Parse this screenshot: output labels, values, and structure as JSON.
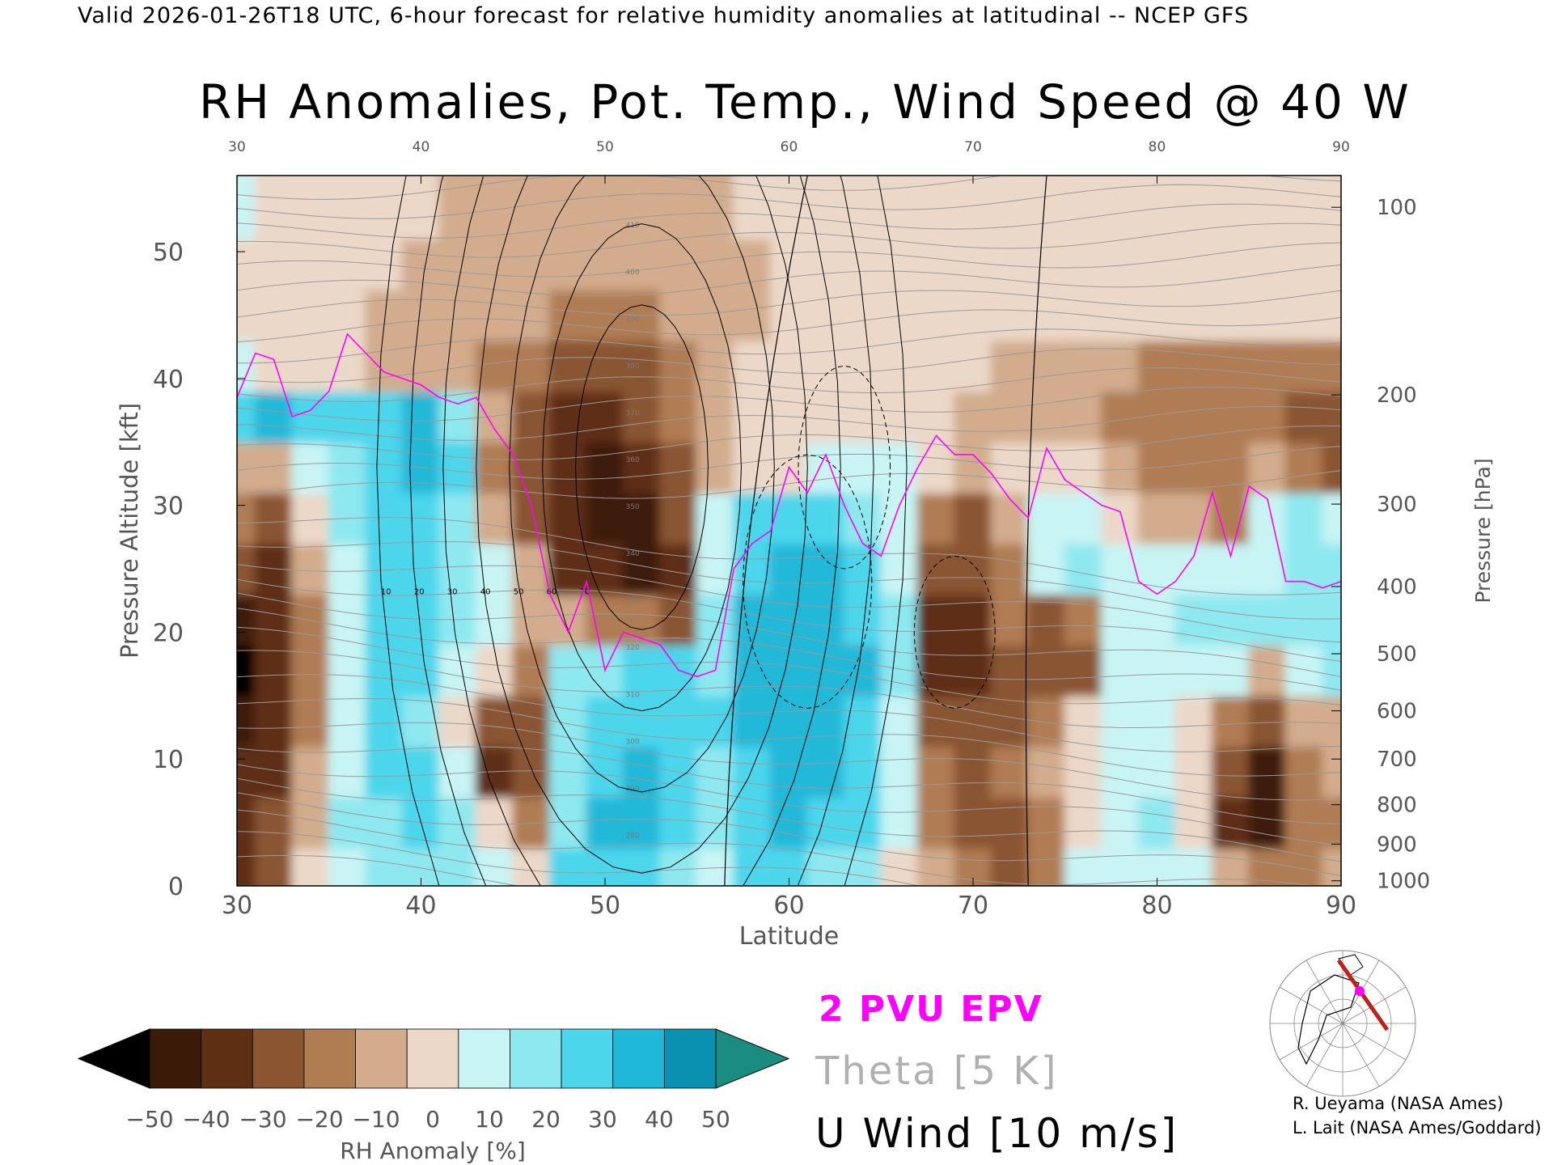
{
  "header": {
    "valid_line": "Valid 2026-01-26T18 UTC, 6-hour forecast for relative humidity anomalies at latitudinal -- NCEP GFS"
  },
  "chart_data": {
    "type": "heatmap",
    "title": "RH Anomalies, Pot. Temp., Wind Speed @ 40 W",
    "xlabel": "Latitude",
    "ylabel_left": "Pressure Altitude [kft]",
    "ylabel_right": "Pressure [hPa]",
    "xlim": [
      30,
      90
    ],
    "ylim": [
      0,
      56
    ],
    "x_ticks": [
      30,
      40,
      50,
      60,
      70,
      80,
      90
    ],
    "y_ticks_kft": [
      0,
      10,
      20,
      30,
      40,
      50
    ],
    "right_axis_ticks": [
      {
        "label": "1000",
        "kft": 0.4
      },
      {
        "label": "900",
        "kft": 3.3
      },
      {
        "label": "800",
        "kft": 6.4
      },
      {
        "label": "700",
        "kft": 10.0
      },
      {
        "label": "600",
        "kft": 13.8
      },
      {
        "label": "500",
        "kft": 18.3
      },
      {
        "label": "400",
        "kft": 23.6
      },
      {
        "label": "300",
        "kft": 30.1
      },
      {
        "label": "200",
        "kft": 38.7
      },
      {
        "label": "100",
        "kft": 53.5
      }
    ],
    "rh_anomaly_field": {
      "description_units": "percent",
      "lat": [
        30,
        32,
        34,
        36,
        38,
        40,
        42,
        44,
        46,
        48,
        50,
        52,
        54,
        56,
        58,
        60,
        62,
        64,
        66,
        68,
        70,
        72,
        74,
        76,
        78,
        80,
        82,
        84,
        86,
        88,
        90
      ],
      "kft": [
        1,
        5,
        9,
        13,
        17,
        21,
        25,
        29,
        33,
        37,
        41,
        45,
        49,
        53
      ],
      "values": [
        [
          -32,
          -22,
          8,
          18,
          22,
          28,
          24,
          12,
          4,
          30,
          38,
          34,
          26,
          18,
          30,
          36,
          28,
          22,
          8,
          -8,
          -18,
          -22,
          -12,
          10,
          14,
          18,
          12,
          -10,
          -20,
          -12,
          -10
        ],
        [
          -38,
          -30,
          -6,
          20,
          28,
          38,
          26,
          4,
          -12,
          24,
          44,
          40,
          30,
          22,
          34,
          40,
          36,
          30,
          10,
          -14,
          -24,
          -26,
          -18,
          8,
          14,
          20,
          8,
          -32,
          -45,
          -16,
          -12
        ],
        [
          -40,
          -32,
          -10,
          18,
          30,
          30,
          10,
          -40,
          -30,
          28,
          36,
          44,
          30,
          26,
          38,
          44,
          42,
          36,
          14,
          -18,
          -22,
          -20,
          -10,
          6,
          10,
          18,
          4,
          -28,
          -48,
          -14,
          -8
        ],
        [
          -44,
          -36,
          -14,
          14,
          34,
          28,
          6,
          -26,
          -22,
          22,
          30,
          38,
          34,
          30,
          40,
          44,
          42,
          38,
          18,
          -26,
          -28,
          -24,
          -14,
          8,
          12,
          16,
          6,
          -20,
          -30,
          -10,
          -6
        ],
        [
          -50,
          -40,
          -18,
          10,
          36,
          36,
          18,
          4,
          -16,
          26,
          20,
          34,
          30,
          28,
          40,
          44,
          44,
          40,
          22,
          -34,
          -40,
          -28,
          -30,
          -30,
          10,
          14,
          12,
          10,
          -6,
          14,
          20
        ],
        [
          -42,
          -38,
          -12,
          14,
          34,
          38,
          26,
          10,
          -4,
          -10,
          -12,
          -16,
          -28,
          20,
          40,
          44,
          42,
          38,
          22,
          -32,
          -36,
          -20,
          -22,
          -12,
          16,
          18,
          20,
          26,
          20,
          24,
          22
        ],
        [
          -30,
          -32,
          -6,
          16,
          32,
          36,
          28,
          10,
          -10,
          -34,
          -40,
          -44,
          -36,
          18,
          38,
          42,
          40,
          34,
          18,
          -26,
          -30,
          -12,
          10,
          20,
          18,
          14,
          10,
          12,
          18,
          26,
          20
        ],
        [
          -18,
          -22,
          2,
          20,
          30,
          38,
          26,
          -4,
          -30,
          -40,
          -44,
          -42,
          -30,
          12,
          32,
          38,
          36,
          24,
          14,
          -16,
          -24,
          -8,
          14,
          18,
          4,
          -6,
          -10,
          -12,
          10,
          24,
          18
        ],
        [
          -10,
          -8,
          14,
          24,
          34,
          40,
          30,
          -18,
          -30,
          -40,
          -44,
          -36,
          -24,
          -4,
          8,
          6,
          10,
          12,
          10,
          6,
          -2,
          2,
          8,
          2,
          -10,
          -14,
          -18,
          -20,
          -10,
          -16,
          -24
        ],
        [
          36,
          40,
          30,
          32,
          38,
          40,
          26,
          -6,
          -22,
          -36,
          -38,
          -30,
          -20,
          -8,
          2,
          4,
          6,
          8,
          6,
          2,
          -2,
          -4,
          -2,
          -8,
          -16,
          -20,
          -16,
          -14,
          -20,
          -24,
          -26
        ],
        [
          14,
          8,
          6,
          2,
          -2,
          -6,
          -10,
          -14,
          -20,
          -26,
          -28,
          -24,
          -14,
          -6,
          0,
          2,
          2,
          4,
          4,
          2,
          0,
          -2,
          -4,
          -6,
          -10,
          -12,
          -12,
          -14,
          -16,
          -18,
          -18
        ],
        [
          6,
          4,
          2,
          0,
          -2,
          -4,
          -6,
          -8,
          -10,
          -12,
          -14,
          -12,
          -8,
          -4,
          -2,
          0,
          2,
          2,
          4,
          4,
          4,
          4,
          6,
          6,
          6,
          6,
          6,
          6,
          6,
          6,
          6
        ],
        [
          8,
          6,
          4,
          2,
          0,
          -2,
          -4,
          -6,
          -8,
          -10,
          -10,
          -8,
          -6,
          -4,
          -2,
          0,
          2,
          2,
          4,
          4,
          6,
          6,
          6,
          6,
          6,
          8,
          8,
          8,
          8,
          8,
          8
        ],
        [
          10,
          8,
          6,
          4,
          2,
          0,
          -2,
          -4,
          -6,
          -8,
          -8,
          -6,
          -4,
          -2,
          0,
          2,
          2,
          4,
          4,
          6,
          6,
          6,
          8,
          8,
          8,
          8,
          8,
          8,
          8,
          8,
          8
        ]
      ]
    },
    "epv_2pvu_line": {
      "lat": [
        30,
        31,
        32,
        33,
        34,
        35,
        36,
        37,
        38,
        39,
        40,
        41,
        42,
        43,
        44,
        45,
        46,
        47,
        48,
        49,
        50,
        51,
        52,
        53,
        54,
        55,
        56,
        57,
        58,
        59,
        60,
        61,
        62,
        63,
        64,
        65,
        66,
        67,
        68,
        69,
        70,
        71,
        72,
        73,
        74,
        75,
        76,
        77,
        78,
        79,
        80,
        81,
        82,
        83,
        84,
        85,
        86,
        87,
        88,
        89,
        90
      ],
      "kft": [
        38.5,
        42,
        41.5,
        37,
        37.5,
        39,
        43.5,
        42,
        40.5,
        40,
        39.5,
        38.5,
        38,
        38.5,
        36,
        34,
        30,
        23,
        20,
        24,
        17,
        20,
        19.5,
        19,
        17,
        16.5,
        17,
        25,
        27,
        28,
        33,
        31,
        34,
        30,
        27,
        26,
        30,
        33,
        35.5,
        34,
        34,
        32.5,
        30.5,
        29,
        34.5,
        32,
        31,
        30,
        29.5,
        24,
        23,
        24,
        26,
        31,
        26,
        31.5,
        30.5,
        24,
        24,
        23.5,
        24
      ]
    },
    "u_wind_contours_m_s": [
      -30,
      -20,
      -10,
      0,
      10,
      20,
      30,
      40,
      50,
      60,
      70
    ],
    "theta_contours_K": [
      280,
      290,
      300,
      310,
      320,
      330,
      340,
      350,
      360,
      370,
      380,
      390,
      400,
      410
    ],
    "colorbar": {
      "label": "RH Anomaly [%]",
      "ticks": [
        "−50",
        "−40",
        "−30",
        "−20",
        "−10",
        "0",
        "10",
        "20",
        "30",
        "40",
        "50"
      ],
      "colors": [
        "#3c1a08",
        "#5e2f12",
        "#8a5530",
        "#b07c52",
        "#d2ac8c",
        "#ecd8c8",
        "#c8f4f4",
        "#8ee8f0",
        "#4cd6ec",
        "#20b8d8",
        "#0a90b0"
      ],
      "under_color": "#000000",
      "over_color": "#1a8c80"
    },
    "legend": {
      "epv_label": "2 PVU EPV",
      "theta_label": "Theta [5 K]",
      "uwind_label": "U Wind [10 m/s]",
      "epv_color": "#ff00ff",
      "theta_color": "#b0b0b0",
      "uwind_color": "#000000"
    },
    "inset_map": {
      "marker_color": "#ff00ff",
      "track_color": "#c0201a"
    }
  },
  "credits": {
    "line1": "R. Ueyama (NASA Ames)",
    "line2": "L. Lait (NASA Ames/Goddard)"
  }
}
